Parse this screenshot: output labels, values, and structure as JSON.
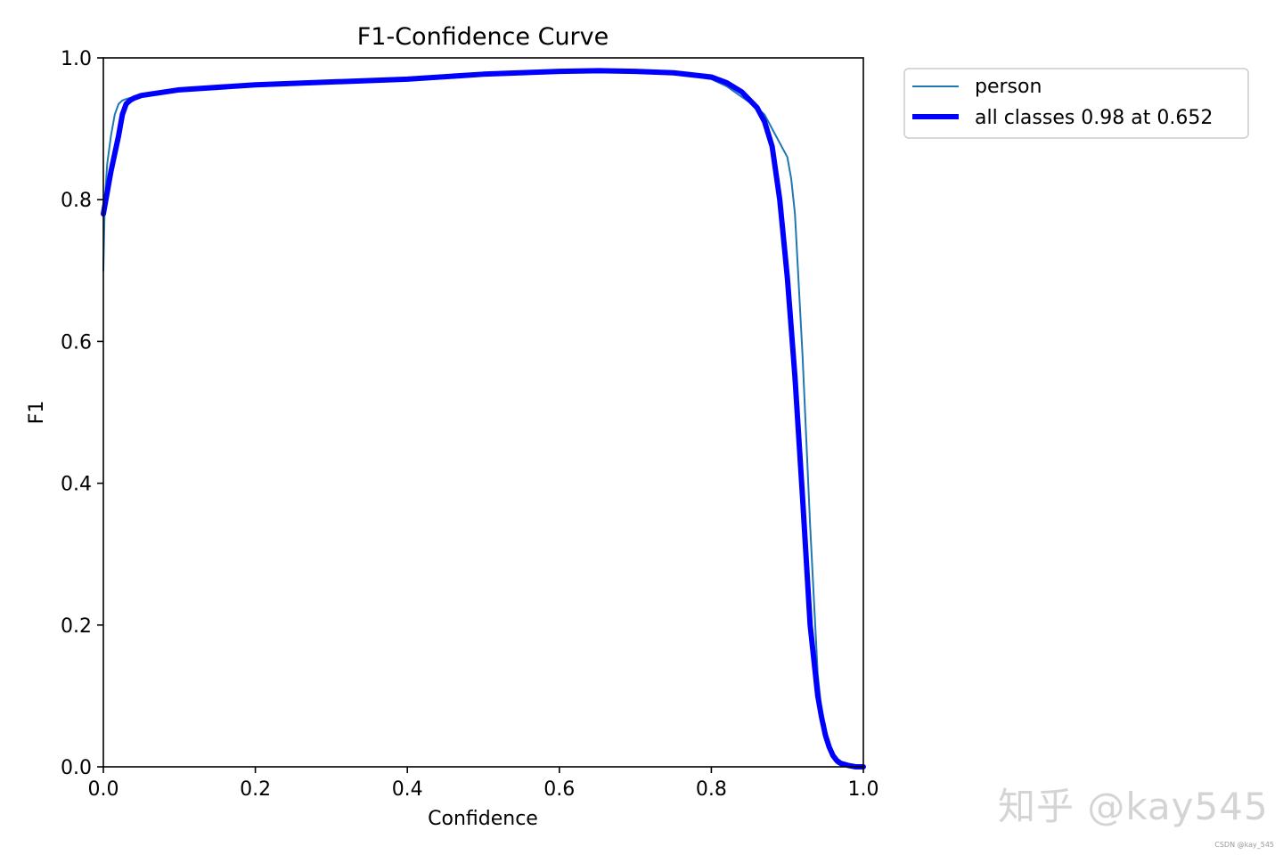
{
  "chart_data": {
    "type": "line",
    "title": "F1-Confidence Curve",
    "xlabel": "Confidence",
    "ylabel": "F1",
    "xlim": [
      0.0,
      1.0
    ],
    "ylim": [
      0.0,
      1.0
    ],
    "xticks": [
      "0.0",
      "0.2",
      "0.4",
      "0.6",
      "0.8",
      "1.0"
    ],
    "yticks": [
      "0.0",
      "0.2",
      "0.4",
      "0.6",
      "0.8",
      "1.0"
    ],
    "grid": false,
    "legend_position": "outside top-right",
    "series": [
      {
        "name": "person",
        "color": "#1f77b4",
        "style": "thin",
        "x": [
          0.0,
          0.002,
          0.005,
          0.01,
          0.015,
          0.02,
          0.025,
          0.03,
          0.04,
          0.05,
          0.1,
          0.2,
          0.3,
          0.4,
          0.5,
          0.6,
          0.65,
          0.7,
          0.75,
          0.8,
          0.82,
          0.84,
          0.86,
          0.87,
          0.88,
          0.89,
          0.9,
          0.905,
          0.91,
          0.92,
          0.93,
          0.94,
          0.945,
          0.95,
          0.955,
          0.96,
          0.965,
          0.97,
          0.98,
          0.99,
          1.0
        ],
        "y": [
          0.7,
          0.8,
          0.85,
          0.89,
          0.92,
          0.935,
          0.94,
          0.942,
          0.945,
          0.948,
          0.955,
          0.962,
          0.966,
          0.97,
          0.977,
          0.981,
          0.982,
          0.981,
          0.978,
          0.97,
          0.96,
          0.945,
          0.93,
          0.92,
          0.9,
          0.88,
          0.86,
          0.83,
          0.78,
          0.58,
          0.34,
          0.13,
          0.08,
          0.04,
          0.025,
          0.012,
          0.005,
          0.002,
          0.0,
          0.0,
          0.0
        ]
      },
      {
        "name": "all classes 0.98 at 0.652",
        "color": "#0000ff",
        "style": "thick",
        "x": [
          0.0,
          0.005,
          0.01,
          0.02,
          0.025,
          0.03,
          0.035,
          0.04,
          0.05,
          0.1,
          0.2,
          0.3,
          0.4,
          0.5,
          0.6,
          0.652,
          0.7,
          0.75,
          0.8,
          0.82,
          0.84,
          0.86,
          0.87,
          0.88,
          0.89,
          0.9,
          0.91,
          0.92,
          0.93,
          0.94,
          0.945,
          0.95,
          0.955,
          0.96,
          0.965,
          0.97,
          0.98,
          0.99,
          1.0
        ],
        "y": [
          0.78,
          0.81,
          0.84,
          0.89,
          0.92,
          0.935,
          0.94,
          0.943,
          0.947,
          0.955,
          0.962,
          0.966,
          0.97,
          0.977,
          0.981,
          0.982,
          0.981,
          0.979,
          0.973,
          0.965,
          0.952,
          0.93,
          0.91,
          0.875,
          0.8,
          0.69,
          0.55,
          0.38,
          0.2,
          0.1,
          0.07,
          0.045,
          0.028,
          0.016,
          0.009,
          0.005,
          0.002,
          0.0,
          0.0
        ]
      }
    ]
  },
  "watermark": {
    "main": "知乎 @kay545",
    "small": "CSDN @kay_545"
  }
}
